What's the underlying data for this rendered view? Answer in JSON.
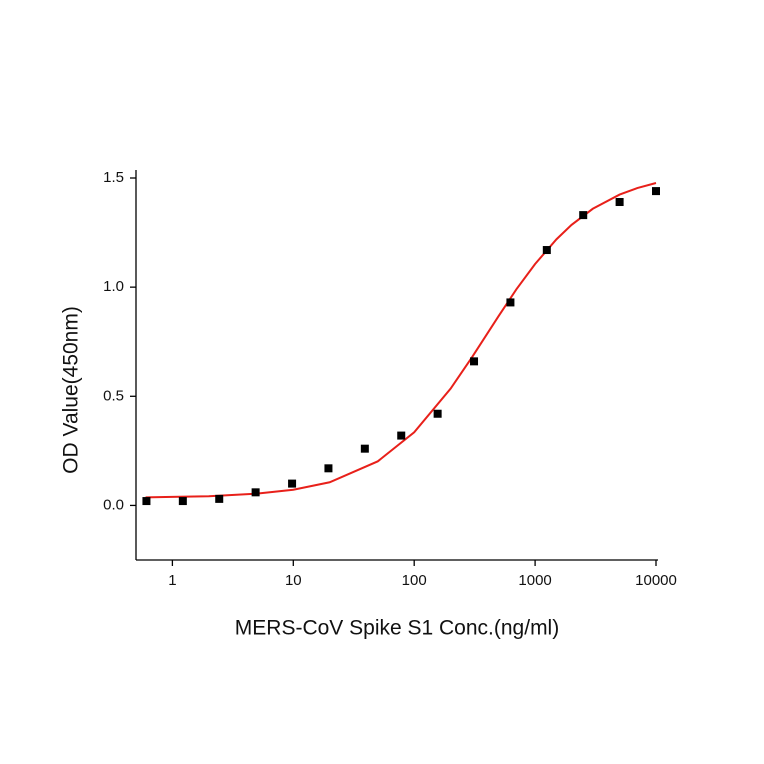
{
  "chart_data": {
    "type": "scatter",
    "x_label": "MERS-CoV Spike S1 Conc.(ng/ml)",
    "y_label": "OD Value(450nm)",
    "xscale": "log",
    "xlim": [
      0.5,
      10000
    ],
    "xticks": [
      1,
      10,
      100,
      1000,
      10000
    ],
    "ylim": [
      -0.25,
      1.5
    ],
    "yticks": [
      {
        "value": 0,
        "label": "0.0"
      },
      {
        "value": 0.5,
        "label": "0.5"
      },
      {
        "value": 1,
        "label": "1.0"
      },
      {
        "value": 1.5,
        "label": "1.5"
      }
    ],
    "grid": false,
    "series": [
      {
        "type": "scatter",
        "color": "#000000",
        "x": [
          0.61,
          1.22,
          2.44,
          4.88,
          9.77,
          19.53,
          39.06,
          78.125,
          156.25,
          312.5,
          625,
          1250,
          2500,
          5000,
          10000
        ],
        "values": [
          0.02,
          0.02,
          0.03,
          0.06,
          0.1,
          0.17,
          0.26,
          0.32,
          0.42,
          0.66,
          0.93,
          1.17,
          1.33,
          1.39,
          1.44
        ]
      },
      {
        "type": "line",
        "color": "#e8201a",
        "x": [
          0.6,
          1,
          2,
          5,
          10,
          20,
          50,
          100,
          200,
          300,
          500,
          700,
          1000,
          1500,
          2000,
          3000,
          5000,
          7000,
          10000
        ],
        "values": [
          0.037,
          0.039,
          0.042,
          0.054,
          0.072,
          0.106,
          0.202,
          0.335,
          0.535,
          0.678,
          0.868,
          0.99,
          1.106,
          1.219,
          1.285,
          1.359,
          1.424,
          1.454,
          1.477
        ]
      }
    ]
  }
}
